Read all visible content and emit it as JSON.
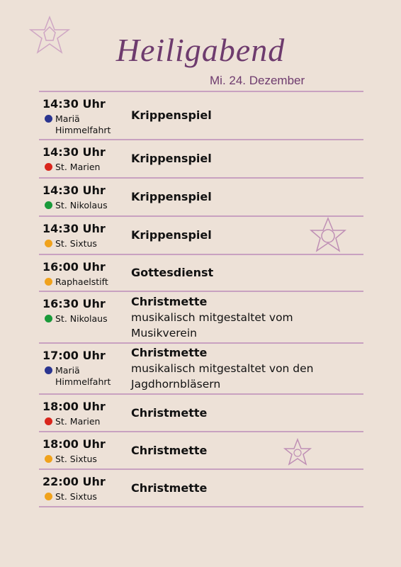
{
  "header": {
    "title": "Heiligabend",
    "subtitle": "Mi. 24. Dezember"
  },
  "rows": [
    {
      "time": "14:30 Uhr",
      "church": "Mariä Himmelfahrt",
      "color": "#2b3590",
      "event": "Krippenspiel",
      "description": []
    },
    {
      "time": "14:30 Uhr",
      "church": "St. Marien",
      "color": "#d9261c",
      "event": "Krippenspiel",
      "description": []
    },
    {
      "time": "14:30 Uhr",
      "church": "St. Nikolaus",
      "color": "#1a9a3a",
      "event": "Krippenspiel",
      "description": []
    },
    {
      "time": "14:30 Uhr",
      "church": "St. Sixtus",
      "color": "#f0a21c",
      "event": "Krippenspiel",
      "description": []
    },
    {
      "time": "16:00 Uhr",
      "church": "Raphaelstift",
      "color": "#f0a21c",
      "event": "Gottesdienst",
      "description": []
    },
    {
      "time": "16:30 Uhr",
      "church": "St. Nikolaus",
      "color": "#1a9a3a",
      "event": "Christmette",
      "description": [
        "musikalisch mitgestaltet vom",
        "Musikverein"
      ]
    },
    {
      "time": "17:00 Uhr",
      "church": "Mariä Himmelfahrt",
      "color": "#2b3590",
      "event": "Christmette",
      "description": [
        "musikalisch mitgestaltet von den",
        "Jagdhornbläsern"
      ]
    },
    {
      "time": "18:00 Uhr",
      "church": "St. Marien",
      "color": "#d9261c",
      "event": "Christmette",
      "description": []
    },
    {
      "time": "18:00 Uhr",
      "church": "St. Sixtus",
      "color": "#f0a21c",
      "event": "Christmette",
      "description": []
    },
    {
      "time": "22:00 Uhr",
      "church": "St. Sixtus",
      "color": "#f0a21c",
      "event": "Christmette",
      "description": []
    }
  ]
}
